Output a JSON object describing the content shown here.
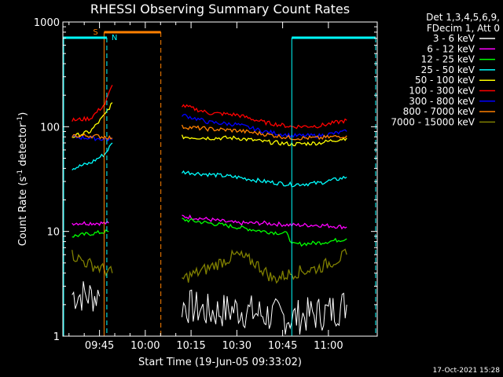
{
  "chart_data": {
    "type": "line",
    "title": "RHESSI Observing Summary Count Rates",
    "xlabel": "Start Time (19-Jun-05 09:33:02)",
    "ylabel_main": "Count Rate (s",
    "ylabel_sup1": "-1",
    "ylabel_mid": " detector",
    "ylabel_sup2": "-1",
    "ylabel_end": ")",
    "y_scale": "log",
    "ylim": [
      1,
      1000
    ],
    "xlim_min": [
      9,
      33
    ],
    "xlim_max_min": [
      11,
      16
    ],
    "x_ticks": [
      {
        "label": "09:45",
        "t": 9.75
      },
      {
        "label": "10:00",
        "t": 10.0
      },
      {
        "label": "10:15",
        "t": 10.25
      },
      {
        "label": "10:30",
        "t": 10.5
      },
      {
        "label": "10:45",
        "t": 10.75
      },
      {
        "label": "11:00",
        "t": 11.0
      }
    ],
    "y_ticks": [
      {
        "label": "1",
        "v": 1
      },
      {
        "label": "10",
        "v": 10
      },
      {
        "label": "100",
        "v": 100
      },
      {
        "label": "1000",
        "v": 1000
      }
    ],
    "legend_header": [
      "Det 1,3,4,5,6,9,",
      "FDecim 1, Att 0"
    ],
    "timestamp": "17-Oct-2021 15:28",
    "flags": [
      {
        "label": "S",
        "color": "#ff8000"
      },
      {
        "label": "N",
        "color": "#00ffff"
      }
    ],
    "series": [
      {
        "name": "3 - 6 keV",
        "color": "#ffffff",
        "points": [
          [
            9.6,
            2.5
          ],
          [
            9.75,
            2.4
          ],
          [
            10.2,
            2.0
          ],
          [
            10.35,
            1.7
          ],
          [
            10.5,
            1.8
          ],
          [
            10.65,
            1.6
          ],
          [
            10.8,
            1.5
          ],
          [
            11.0,
            1.7
          ],
          [
            11.1,
            2.0
          ]
        ]
      },
      {
        "name": "6 - 12 keV",
        "color": "#ff00ff",
        "points": [
          [
            9.6,
            12
          ],
          [
            9.7,
            12
          ],
          [
            9.8,
            12
          ],
          [
            10.2,
            14
          ],
          [
            10.35,
            13
          ],
          [
            10.5,
            12
          ],
          [
            10.65,
            12
          ],
          [
            10.8,
            11.5
          ],
          [
            10.95,
            11.5
          ],
          [
            11.1,
            11
          ]
        ]
      },
      {
        "name": "12 - 25 keV",
        "color": "#00ff00",
        "points": [
          [
            9.6,
            9
          ],
          [
            9.7,
            9.5
          ],
          [
            9.8,
            10
          ],
          [
            10.2,
            13
          ],
          [
            10.35,
            12
          ],
          [
            10.5,
            11
          ],
          [
            10.65,
            10
          ],
          [
            10.78,
            9.5
          ],
          [
            10.8,
            7.5
          ],
          [
            10.95,
            7.8
          ],
          [
            11.1,
            8.5
          ]
        ]
      },
      {
        "name": "25 - 50 keV",
        "color": "#00ffff",
        "points": [
          [
            9.6,
            40
          ],
          [
            9.7,
            45
          ],
          [
            9.78,
            55
          ],
          [
            9.82,
            70
          ],
          [
            10.2,
            37
          ],
          [
            10.35,
            35
          ],
          [
            10.5,
            33
          ],
          [
            10.65,
            30
          ],
          [
            10.8,
            28
          ],
          [
            10.95,
            29
          ],
          [
            11.1,
            33
          ]
        ]
      },
      {
        "name": "50 - 100 keV",
        "color": "#ffff00",
        "points": [
          [
            9.6,
            80
          ],
          [
            9.7,
            90
          ],
          [
            9.78,
            130
          ],
          [
            9.82,
            170
          ],
          [
            10.2,
            80
          ],
          [
            10.35,
            78
          ],
          [
            10.5,
            78
          ],
          [
            10.65,
            72
          ],
          [
            10.8,
            68
          ],
          [
            10.95,
            70
          ],
          [
            11.1,
            78
          ]
        ]
      },
      {
        "name": "100 - 300 keV",
        "color": "#ff0000",
        "points": [
          [
            9.6,
            115
          ],
          [
            9.7,
            120
          ],
          [
            9.78,
            165
          ],
          [
            9.82,
            250
          ],
          [
            10.2,
            160
          ],
          [
            10.35,
            135
          ],
          [
            10.5,
            130
          ],
          [
            10.65,
            110
          ],
          [
            10.8,
            100
          ],
          [
            10.95,
            102
          ],
          [
            11.1,
            115
          ]
        ]
      },
      {
        "name": "300 - 800 keV",
        "color": "#0000ff",
        "points": [
          [
            9.6,
            80
          ],
          [
            9.7,
            78
          ],
          [
            9.78,
            76
          ],
          [
            9.82,
            75
          ],
          [
            10.2,
            130
          ],
          [
            10.35,
            110
          ],
          [
            10.5,
            105
          ],
          [
            10.65,
            90
          ],
          [
            10.8,
            82
          ],
          [
            10.95,
            82
          ],
          [
            11.1,
            90
          ]
        ]
      },
      {
        "name": "800 - 7000 keV",
        "color": "#ff8000",
        "points": [
          [
            9.6,
            82
          ],
          [
            9.7,
            82
          ],
          [
            9.78,
            80
          ],
          [
            9.82,
            78
          ],
          [
            10.2,
            100
          ],
          [
            10.35,
            95
          ],
          [
            10.5,
            92
          ],
          [
            10.65,
            85
          ],
          [
            10.8,
            78
          ],
          [
            10.95,
            78
          ],
          [
            11.1,
            82
          ]
        ]
      },
      {
        "name": "7000 - 15000 keV",
        "color": "#808000",
        "points": [
          [
            9.6,
            6
          ],
          [
            9.68,
            5
          ],
          [
            9.75,
            4.5
          ],
          [
            9.82,
            4
          ],
          [
            10.2,
            3.5
          ],
          [
            10.35,
            4.5
          ],
          [
            10.5,
            6
          ],
          [
            10.6,
            5
          ],
          [
            10.7,
            3.5
          ],
          [
            10.8,
            4
          ],
          [
            10.95,
            4.5
          ],
          [
            11.1,
            6
          ]
        ]
      }
    ]
  }
}
